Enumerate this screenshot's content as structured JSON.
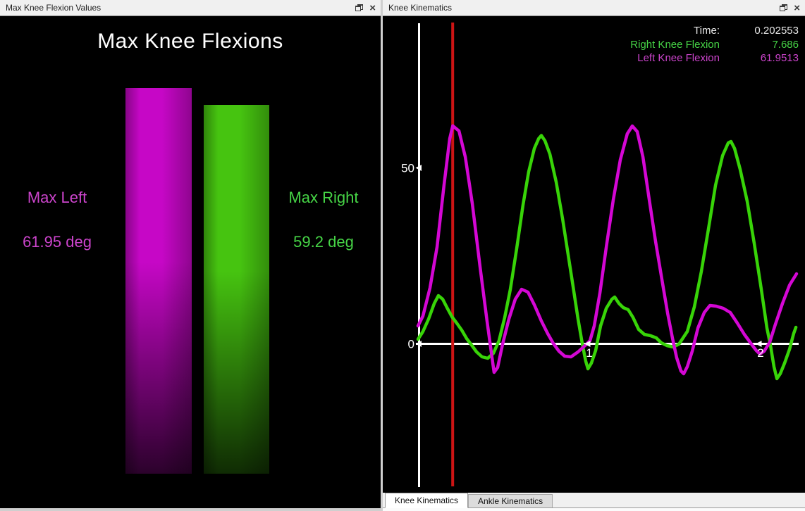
{
  "left_window": {
    "title": "Max Knee Flexion Values",
    "chart_title": "Max Knee Flexions"
  },
  "right_window": {
    "title": "Knee Kinematics",
    "readout": {
      "time_label": "Time:",
      "time_value": "0.202553",
      "right_label": "Right Knee Flexion",
      "right_value": "7.686",
      "left_label": "Left Knee Flexion",
      "left_value": "61.9513"
    },
    "tabs": [
      {
        "label": "Knee Kinematics",
        "active": true
      },
      {
        "label": "Ankle Kinematics",
        "active": false
      }
    ]
  },
  "icons": {
    "close_glyph": "×",
    "float_glyph": "float-window"
  },
  "colors": {
    "magenta": "#d407d4",
    "green": "#38d408",
    "magenta_text": "#cc44cc",
    "green_text": "#46d446",
    "red_cursor": "#cc1414",
    "bar_magenta": "#c607c6",
    "bar_green": "#46c410",
    "axis": "#ffffff"
  },
  "chart_data": [
    {
      "type": "bar",
      "title": "Max Knee Flexions",
      "categories": [
        "Max Left",
        "Max Right"
      ],
      "values": [
        61.95,
        59.2
      ],
      "value_labels": [
        "61.95 deg",
        "59.2 deg"
      ],
      "colors": [
        "#c607c6",
        "#46c410"
      ],
      "unit": "deg"
    },
    {
      "type": "line",
      "x_ticks": [
        1,
        2
      ],
      "y_ticks": [
        0,
        50
      ],
      "cursor_time": 0.202553,
      "legend_position": "top-right",
      "series": [
        {
          "name": "Right Knee Flexion",
          "color": "#38d408",
          "points": [
            [
              0,
              1.3
            ],
            [
              0.029,
              3.5
            ],
            [
              0.062,
              7.1
            ],
            [
              0.095,
              11.5
            ],
            [
              0.119,
              13.7
            ],
            [
              0.144,
              12.7
            ],
            [
              0.169,
              10.3
            ],
            [
              0.198,
              7.7
            ],
            [
              0.226,
              5.9
            ],
            [
              0.255,
              3.9
            ],
            [
              0.284,
              1.5
            ],
            [
              0.309,
              -0.1
            ],
            [
              0.342,
              -2.3
            ],
            [
              0.374,
              -3.7
            ],
            [
              0.407,
              -4.1
            ],
            [
              0.44,
              -2.7
            ],
            [
              0.473,
              0.9
            ],
            [
              0.506,
              7.5
            ],
            [
              0.539,
              15.5
            ],
            [
              0.576,
              27.1
            ],
            [
              0.613,
              39.5
            ],
            [
              0.646,
              48.9
            ],
            [
              0.679,
              55.5
            ],
            [
              0.704,
              58.3
            ],
            [
              0.72,
              59.2
            ],
            [
              0.741,
              57.7
            ],
            [
              0.77,
              53.9
            ],
            [
              0.807,
              45.9
            ],
            [
              0.844,
              35.5
            ],
            [
              0.881,
              23.9
            ],
            [
              0.909,
              15.1
            ],
            [
              0.934,
              7.1
            ],
            [
              0.959,
              0.1
            ],
            [
              0.979,
              -4.9
            ],
            [
              0.992,
              -7.1
            ],
            [
              1.012,
              -5.5
            ],
            [
              1.037,
              -1.9
            ],
            [
              1.066,
              5.1
            ],
            [
              1.099,
              10.1
            ],
            [
              1.132,
              12.7
            ],
            [
              1.148,
              13.3
            ],
            [
              1.173,
              11.5
            ],
            [
              1.198,
              10.3
            ],
            [
              1.227,
              9.7
            ],
            [
              1.255,
              7.5
            ],
            [
              1.288,
              4.1
            ],
            [
              1.321,
              2.7
            ],
            [
              1.358,
              2.3
            ],
            [
              1.391,
              1.7
            ],
            [
              1.42,
              0.3
            ],
            [
              1.453,
              -0.5
            ],
            [
              1.49,
              -0.9
            ],
            [
              1.523,
              -0.1
            ],
            [
              1.572,
              3.5
            ],
            [
              1.613,
              10.5
            ],
            [
              1.654,
              20.5
            ],
            [
              1.695,
              32.5
            ],
            [
              1.737,
              45.1
            ],
            [
              1.778,
              53.5
            ],
            [
              1.811,
              57.1
            ],
            [
              1.827,
              57.5
            ],
            [
              1.848,
              55.5
            ],
            [
              1.881,
              49.5
            ],
            [
              1.922,
              40.5
            ],
            [
              1.963,
              28.5
            ],
            [
              2.004,
              15.5
            ],
            [
              2.037,
              4.5
            ],
            [
              2.058,
              -0.5
            ],
            [
              2.078,
              -6.5
            ],
            [
              2.095,
              -9.9
            ],
            [
              2.115,
              -8.5
            ],
            [
              2.14,
              -5.5
            ],
            [
              2.169,
              -1.5
            ],
            [
              2.193,
              2.9
            ],
            [
              2.206,
              4.7
            ]
          ]
        },
        {
          "name": "Left Knee Flexion",
          "color": "#d407d4",
          "points": [
            [
              0,
              5.1
            ],
            [
              0.029,
              7.9
            ],
            [
              0.07,
              15.9
            ],
            [
              0.111,
              27.5
            ],
            [
              0.152,
              45.1
            ],
            [
              0.185,
              58.3
            ],
            [
              0.203,
              61.95
            ],
            [
              0.239,
              60.5
            ],
            [
              0.276,
              53.1
            ],
            [
              0.317,
              39.9
            ],
            [
              0.362,
              21.9
            ],
            [
              0.403,
              6.5
            ],
            [
              0.432,
              -3.9
            ],
            [
              0.444,
              -8.1
            ],
            [
              0.465,
              -6.7
            ],
            [
              0.494,
              -0.1
            ],
            [
              0.531,
              7.1
            ],
            [
              0.568,
              12.7
            ],
            [
              0.605,
              15.5
            ],
            [
              0.642,
              14.7
            ],
            [
              0.679,
              11.1
            ],
            [
              0.72,
              6.5
            ],
            [
              0.757,
              2.9
            ],
            [
              0.79,
              0.1
            ],
            [
              0.823,
              -2.1
            ],
            [
              0.856,
              -3.5
            ],
            [
              0.893,
              -3.7
            ],
            [
              0.934,
              -2.3
            ],
            [
              0.975,
              -0.5
            ],
            [
              1.004,
              0.9
            ],
            [
              1.029,
              5.1
            ],
            [
              1.062,
              14.5
            ],
            [
              1.099,
              27.5
            ],
            [
              1.14,
              40.9
            ],
            [
              1.181,
              52.3
            ],
            [
              1.222,
              59.7
            ],
            [
              1.251,
              61.9
            ],
            [
              1.28,
              60.3
            ],
            [
              1.313,
              53.1
            ],
            [
              1.35,
              40.9
            ],
            [
              1.387,
              29.1
            ],
            [
              1.424,
              18.3
            ],
            [
              1.457,
              8.7
            ],
            [
              1.486,
              1.5
            ],
            [
              1.51,
              -3.9
            ],
            [
              1.535,
              -7.7
            ],
            [
              1.551,
              -8.5
            ],
            [
              1.572,
              -6.5
            ],
            [
              1.601,
              -2.1
            ],
            [
              1.634,
              4.5
            ],
            [
              1.671,
              8.9
            ],
            [
              1.704,
              10.9
            ],
            [
              1.741,
              10.7
            ],
            [
              1.782,
              10.1
            ],
            [
              1.823,
              8.9
            ],
            [
              1.864,
              5.9
            ],
            [
              1.905,
              2.7
            ],
            [
              1.947,
              -0.1
            ],
            [
              1.975,
              -1.9
            ],
            [
              1.996,
              -2.9
            ],
            [
              2.021,
              -2.1
            ],
            [
              2.054,
              0.5
            ],
            [
              2.086,
              5.5
            ],
            [
              2.128,
              11.5
            ],
            [
              2.169,
              16.7
            ],
            [
              2.21,
              19.9
            ]
          ]
        }
      ]
    }
  ]
}
